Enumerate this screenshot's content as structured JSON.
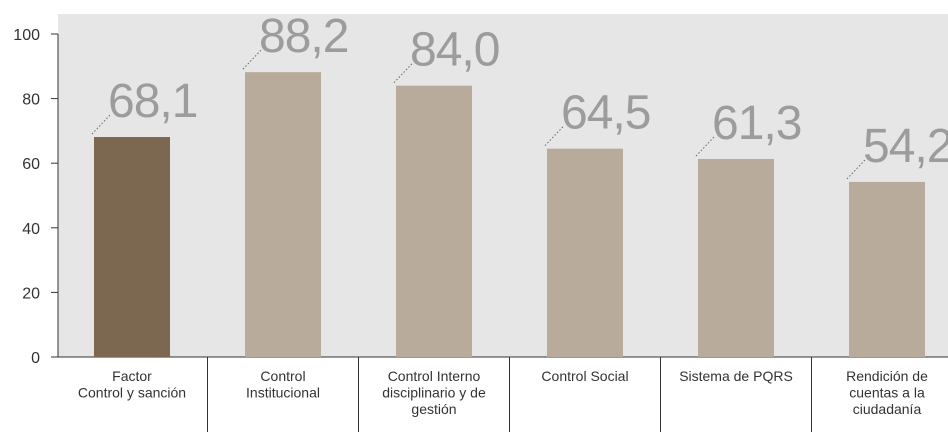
{
  "chart_data": {
    "type": "bar",
    "title": "",
    "xlabel": "",
    "ylabel": "",
    "ylim": [
      0,
      100
    ],
    "yticks": [
      "0",
      "20",
      "40",
      "60",
      "80",
      "100"
    ],
    "grid": false,
    "categories": [
      [
        "Factor",
        "Control y sanción"
      ],
      [
        "Control",
        "Institucional"
      ],
      [
        "Control Interno",
        "disciplinario y de",
        "gestión"
      ],
      [
        "Control Social"
      ],
      [
        "Sistema de PQRS"
      ],
      [
        "Rendición de",
        "cuentas a la",
        "ciudadanía"
      ]
    ],
    "values": [
      68.1,
      88.2,
      84.0,
      64.5,
      61.3,
      54.2
    ],
    "value_labels": [
      "68,1",
      "88,2",
      "84,0",
      "64,5",
      "61,3",
      "54,2"
    ],
    "colors": {
      "highlight": "#7c6750",
      "bar": "#b8ab9b",
      "plot_background": "#e6e6e7",
      "value_label": "#9c9c9c",
      "axis": "#333333"
    },
    "highlight_index": 0
  }
}
